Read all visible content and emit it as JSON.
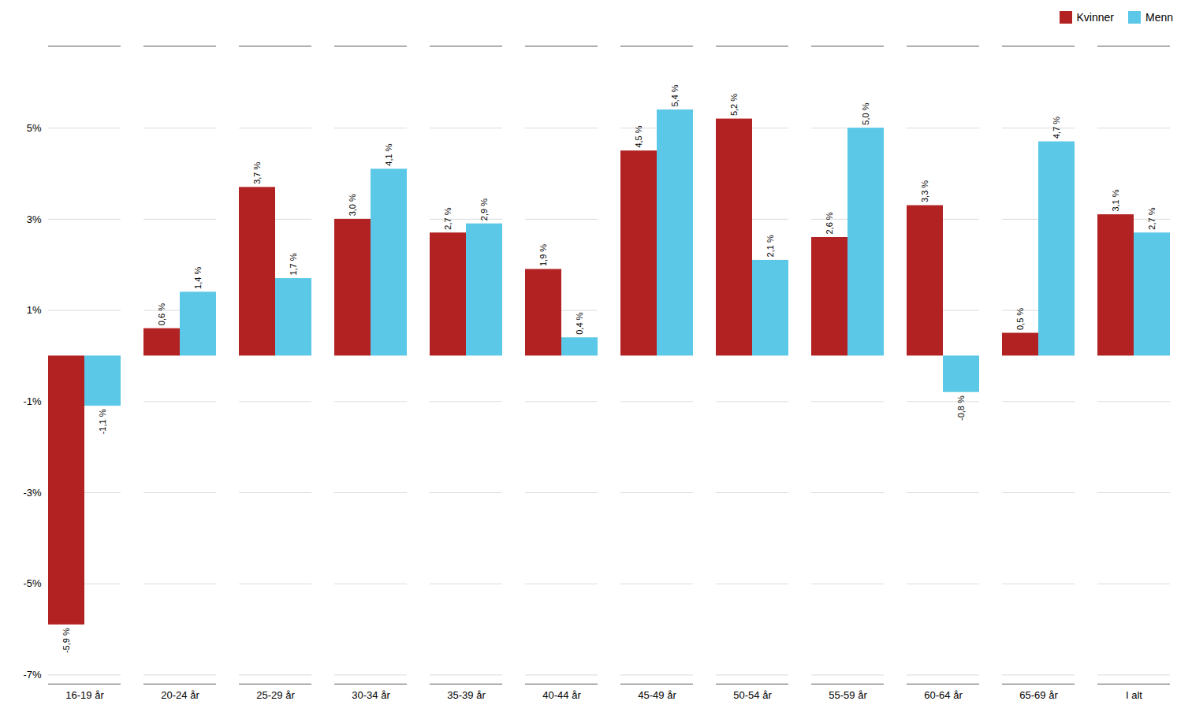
{
  "chart_data": {
    "type": "bar",
    "categories": [
      "16-19 år",
      "20-24 år",
      "25-29 år",
      "30-34 år",
      "35-39 år",
      "40-44 år",
      "45-49 år",
      "50-54 år",
      "55-59 år",
      "60-64 år",
      "65-69 år",
      "I alt"
    ],
    "series": [
      {
        "name": "Kvinner",
        "color": "#B22222",
        "values": [
          -5.9,
          0.6,
          3.7,
          3.0,
          2.7,
          1.9,
          4.5,
          5.2,
          2.6,
          3.3,
          0.5,
          3.1
        ],
        "value_labels": [
          "-5,9 %",
          "0,6 %",
          "3,7 %",
          "3,0 %",
          "2,7 %",
          "1,9 %",
          "4,5 %",
          "5,2 %",
          "2,6 %",
          "3,3 %",
          "0,5 %",
          "3,1 %"
        ]
      },
      {
        "name": "Menn",
        "color": "#5BC8E8",
        "values": [
          -1.1,
          1.4,
          1.7,
          4.1,
          2.9,
          0.4,
          5.4,
          2.1,
          5.0,
          -0.8,
          4.7,
          2.7
        ],
        "value_labels": [
          "-1,1 %",
          "1,4 %",
          "1,7 %",
          "4,1 %",
          "2,9 %",
          "0,4 %",
          "5,4 %",
          "2,1 %",
          "5,0 %",
          "-0,8 %",
          "4,7 %",
          "2,7 %"
        ]
      }
    ],
    "ylim": [
      -7.2,
      6.8
    ],
    "yticks": [
      {
        "value": -7,
        "label": "-7%"
      },
      {
        "value": -5,
        "label": "-5%"
      },
      {
        "value": -3,
        "label": "-3%"
      },
      {
        "value": -1,
        "label": "-1%"
      },
      {
        "value": 1,
        "label": "1%"
      },
      {
        "value": 3,
        "label": "3%"
      },
      {
        "value": 5,
        "label": "5%"
      }
    ],
    "grid": true,
    "legend": "upper right",
    "data_labels": true
  }
}
